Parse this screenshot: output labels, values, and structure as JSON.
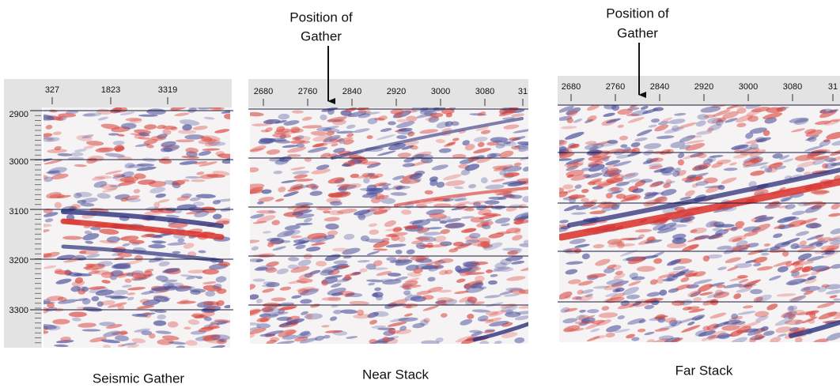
{
  "panels": [
    {
      "caption": "Seismic Gather",
      "top_ticks": [
        "327",
        "1823",
        "3319"
      ],
      "left_ticks": [
        "2900",
        "3000",
        "3100",
        "3200",
        "3300"
      ]
    },
    {
      "caption": "Near Stack",
      "annotation_lines": [
        "Position of",
        "Gather"
      ],
      "top_ticks": [
        "2680",
        "2760",
        "2840",
        "2920",
        "3000",
        "3080",
        "31"
      ]
    },
    {
      "caption": "Far Stack",
      "annotation_lines": [
        "Position of",
        "Gather"
      ],
      "top_ticks": [
        "2680",
        "2760",
        "2840",
        "2920",
        "3000",
        "3080",
        "31"
      ]
    }
  ]
}
